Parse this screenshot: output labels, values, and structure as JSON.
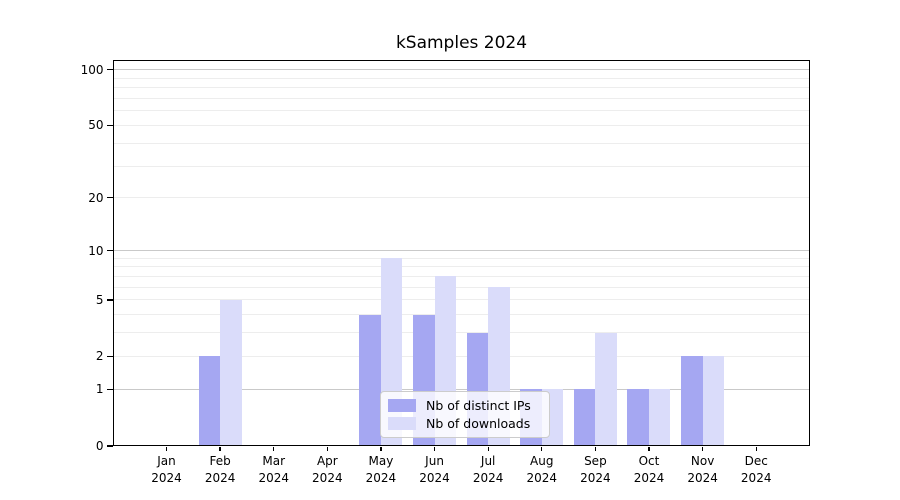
{
  "title": "kSamples 2024",
  "chart_data": {
    "type": "bar",
    "title": "kSamples 2024",
    "x_categories": [
      "Jan",
      "Feb",
      "Mar",
      "Apr",
      "May",
      "Jun",
      "Jul",
      "Aug",
      "Sep",
      "Oct",
      "Nov",
      "Dec"
    ],
    "x_year": "2024",
    "series": [
      {
        "name": "Nb of distinct IPs",
        "color": "#a5a7f2",
        "values": [
          0,
          2,
          0,
          0,
          4,
          4,
          3,
          1,
          1,
          1,
          2,
          0
        ]
      },
      {
        "name": "Nb of downloads",
        "color": "#dadcfa",
        "values": [
          0,
          5,
          0,
          0,
          9,
          7,
          6,
          1,
          3,
          1,
          2,
          0
        ]
      }
    ],
    "y_scale": "log1p",
    "y_tick_labels": [
      "0",
      "1",
      "2",
      "5",
      "10",
      "20",
      "50",
      "100"
    ],
    "y_tick_values": [
      0,
      1,
      2,
      5,
      10,
      20,
      50,
      100
    ],
    "y_major_gridlines": [
      1,
      10,
      100
    ],
    "y_minor_gridlines": [
      2,
      3,
      4,
      5,
      6,
      7,
      8,
      9,
      20,
      30,
      40,
      50,
      60,
      70,
      80,
      90
    ],
    "ylim": [
      0,
      112
    ],
    "grid": "horizontal",
    "legend_position": "lower center"
  },
  "colors": {
    "background": "#ffffff",
    "axis": "#000000",
    "text": "#000000",
    "grid_major": "#c9c9c9",
    "grid_minor": "#ededed",
    "legend_border": "#cccccc"
  }
}
